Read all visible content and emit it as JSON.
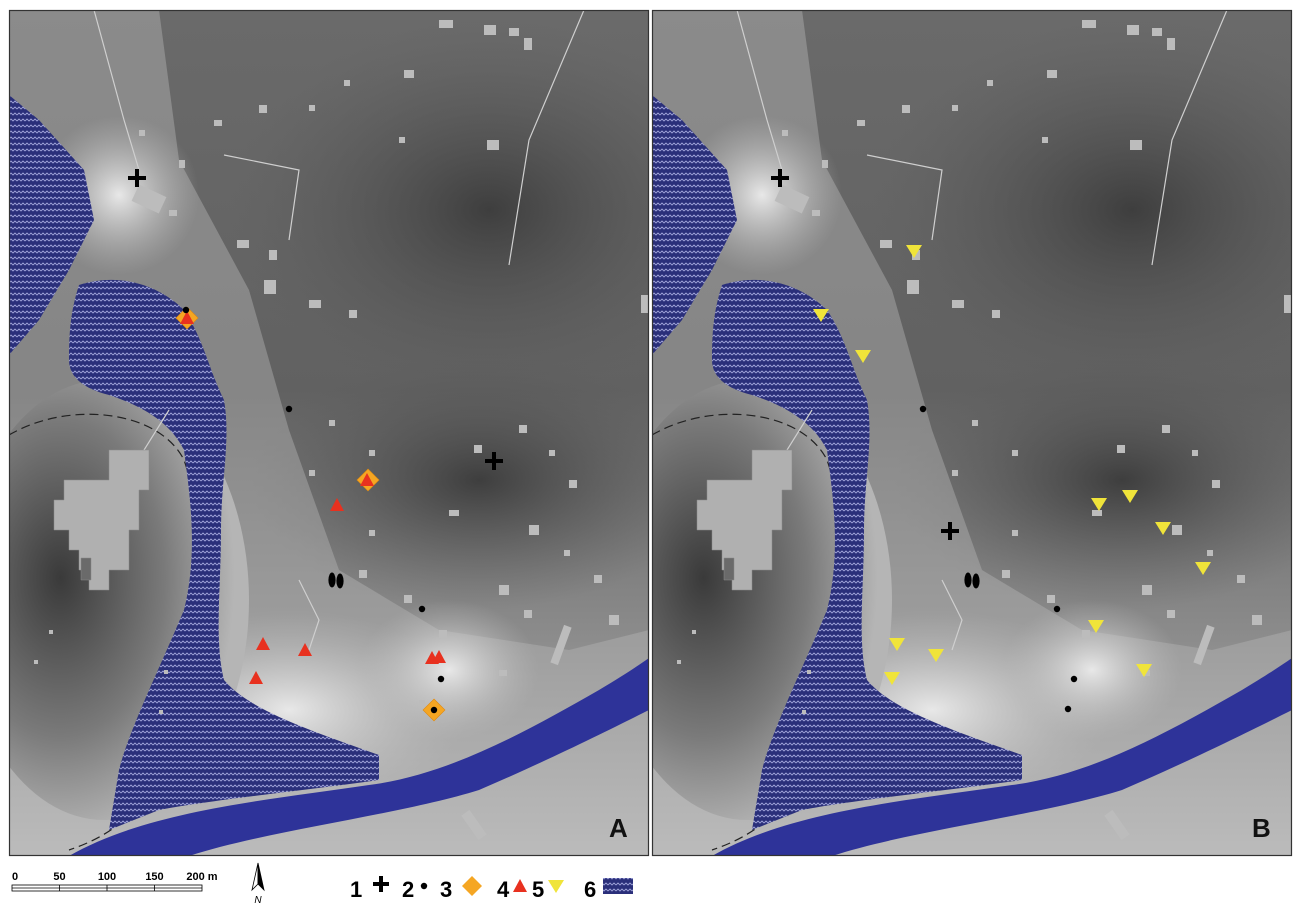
{
  "panels": [
    {
      "label": "A",
      "crosses": [
        [
          128,
          168
        ],
        [
          485,
          451
        ]
      ],
      "dots": [
        [
          177,
          300
        ],
        [
          280,
          399
        ],
        [
          413,
          599
        ],
        [
          432,
          669
        ],
        [
          425,
          700
        ]
      ],
      "diamonds": [
        [
          178,
          308
        ],
        [
          359,
          470
        ],
        [
          425,
          700
        ]
      ],
      "triangles_up": [
        [
          178,
          308
        ],
        [
          328,
          495
        ],
        [
          358,
          470
        ],
        [
          254,
          634
        ],
        [
          296,
          640
        ],
        [
          247,
          668
        ],
        [
          423,
          648
        ],
        [
          430,
          647
        ]
      ],
      "triangles_down": [],
      "footprints": [
        [
          327,
          570
        ]
      ]
    },
    {
      "label": "B",
      "crosses": [
        [
          128,
          168
        ],
        [
          298,
          521
        ]
      ],
      "dots": [
        [
          271,
          399
        ],
        [
          405,
          599
        ],
        [
          422,
          669
        ],
        [
          416,
          699
        ]
      ],
      "diamonds": [],
      "triangles_up": [],
      "triangles_down": [
        [
          262,
          241
        ],
        [
          169,
          305
        ],
        [
          211,
          346
        ],
        [
          447,
          494
        ],
        [
          478,
          486
        ],
        [
          511,
          518
        ],
        [
          551,
          558
        ],
        [
          444,
          616
        ],
        [
          245,
          634
        ],
        [
          284,
          645
        ],
        [
          240,
          668
        ],
        [
          492,
          660
        ]
      ],
      "footprints": [
        [
          320,
          570
        ]
      ]
    }
  ],
  "scale_bar": {
    "ticks": [
      "0",
      "50",
      "100",
      "150",
      "200 m"
    ]
  },
  "north_arrow": {
    "label": "N"
  },
  "legend": [
    {
      "number": "1",
      "symbol": "cross"
    },
    {
      "number": "2",
      "symbol": "dot"
    },
    {
      "number": "3",
      "symbol": "diamond"
    },
    {
      "number": "4",
      "symbol": "triangle-up"
    },
    {
      "number": "5",
      "symbol": "triangle-down"
    },
    {
      "number": "6",
      "symbol": "wavy-hatch"
    }
  ],
  "colors": {
    "river": "#2e3399",
    "hatch_bg": "#2a2f7a",
    "hatch_line": "#9ea2d8",
    "diamond": "#f5a623",
    "triangle_up": "#e8311f",
    "triangle_down": "#f0e43a",
    "marker": "#000000"
  }
}
